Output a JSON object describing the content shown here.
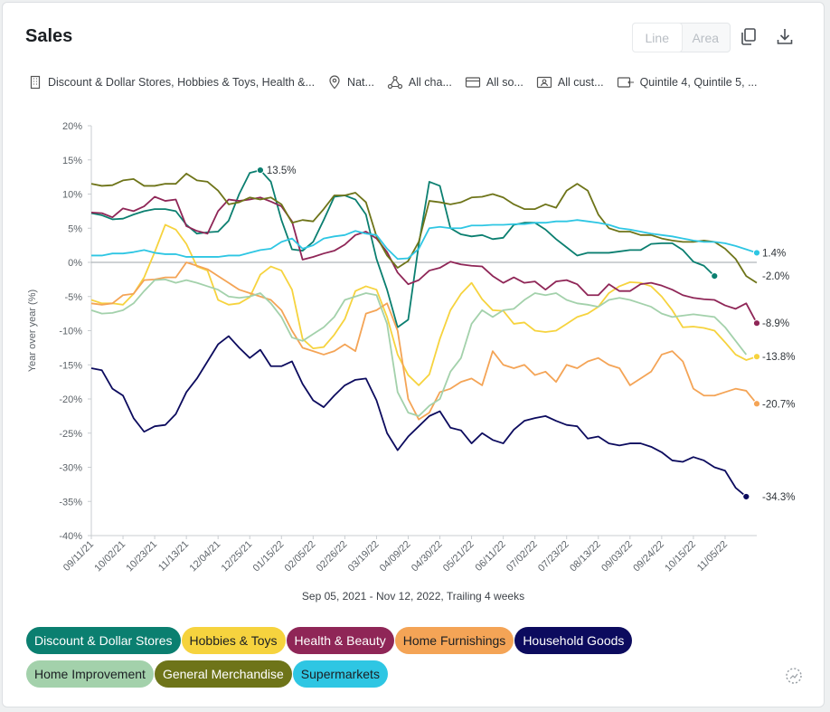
{
  "header": {
    "title": "Sales",
    "toggle": {
      "line_label": "Line",
      "area_label": "Area",
      "selected": "Line"
    },
    "icons": [
      "copy-icon",
      "download-icon"
    ]
  },
  "filters": [
    {
      "icon": "building-icon",
      "label": "Discount & Dollar Stores, Hobbies & Toys, Health &..."
    },
    {
      "icon": "map-pin-icon",
      "label": "Nat..."
    },
    {
      "icon": "channels-icon",
      "label": "All cha..."
    },
    {
      "icon": "card-icon",
      "label": "All so..."
    },
    {
      "icon": "id-card-icon",
      "label": "All cust..."
    },
    {
      "icon": "wallet-icon",
      "label": "Quintile 4, Quintile 5, ..."
    }
  ],
  "chart_data": {
    "type": "line",
    "subtitle": "Sep 05, 2021 - Nov 12, 2022, Trailing 4 weeks",
    "ylabel": "Year over year (%)",
    "ylim": [
      -40,
      20
    ],
    "yticks": [
      20,
      15,
      10,
      5,
      0,
      -5,
      -10,
      -15,
      -20,
      -25,
      -30,
      -35,
      -40
    ],
    "ytick_labels": [
      "20%",
      "15%",
      "10%",
      "5%",
      "0%",
      "-5%",
      "-10%",
      "-15%",
      "-20%",
      "-25%",
      "-30%",
      "-35%",
      "-40%"
    ],
    "x_start": "2021-09-11",
    "xticks": [
      "09/11/21",
      "10/02/21",
      "10/23/21",
      "11/13/21",
      "12/04/21",
      "12/25/21",
      "01/15/22",
      "02/05/22",
      "02/26/22",
      "03/19/22",
      "04/09/22",
      "04/30/22",
      "05/21/22",
      "06/11/22",
      "07/02/22",
      "07/23/22",
      "08/13/22",
      "09/03/22",
      "09/24/22",
      "10/15/22",
      "11/05/22"
    ],
    "grid": false,
    "zero_line": true,
    "legend_position": "bottom",
    "series": [
      {
        "name": "Discount & Dollar Stores",
        "color": "#0b7f70",
        "values": [
          7.2,
          6.9,
          6.3,
          6.4,
          7.0,
          7.5,
          7.8,
          7.8,
          7.5,
          5.5,
          4.2,
          4.4,
          4.5,
          6.1,
          10.0,
          13.1,
          13.5,
          11.8,
          6.2,
          1.9,
          1.7,
          3.0,
          6.2,
          9.6,
          9.8,
          9.2,
          7.0,
          0.5,
          -4.0,
          -9.5,
          -8.4,
          2.6,
          11.8,
          11.2,
          5.0,
          4.1,
          3.8,
          4.0,
          3.4,
          3.6,
          5.5,
          5.8,
          5.8,
          4.8,
          3.4,
          2.2,
          1.0,
          1.4,
          1.4,
          1.4,
          1.6,
          1.8,
          1.8,
          2.7,
          2.8,
          2.8,
          1.8,
          0.1,
          -0.5,
          -2.0
        ],
        "end_label": "-2.0%"
      },
      {
        "name": "Hobbies & Toys",
        "color": "#f6d33e",
        "values": [
          -5.5,
          -6.0,
          -6.0,
          -6.2,
          -4.6,
          -2.2,
          1.5,
          5.5,
          4.8,
          2.7,
          -0.6,
          -1.2,
          -5.5,
          -6.2,
          -6.0,
          -5.1,
          -1.8,
          -0.6,
          -1.2,
          -4.0,
          -11.2,
          -12.6,
          -12.4,
          -10.6,
          -8.3,
          -4.2,
          -3.5,
          -4.0,
          -8.0,
          -13.5,
          -16.5,
          -18.0,
          -16.4,
          -11.2,
          -7.0,
          -4.6,
          -3.0,
          -5.4,
          -7.0,
          -7.1,
          -9.0,
          -8.8,
          -10.0,
          -10.2,
          -10.0,
          -9.0,
          -8.0,
          -7.5,
          -6.5,
          -4.5,
          -3.5,
          -2.9,
          -3.0,
          -3.5,
          -5.0,
          -7.0,
          -9.5,
          -9.4,
          -9.6,
          -10.0,
          -11.7,
          -13.5,
          -14.3,
          -13.8
        ],
        "end_label": "-13.8%"
      },
      {
        "name": "Health & Beauty",
        "color": "#8f2657",
        "values": [
          7.3,
          7.2,
          6.6,
          7.9,
          7.5,
          8.2,
          9.6,
          9.0,
          9.2,
          5.3,
          4.6,
          4.2,
          7.5,
          9.2,
          9.0,
          9.2,
          9.5,
          8.9,
          8.2,
          6.0,
          0.4,
          0.8,
          1.3,
          1.7,
          2.6,
          4.0,
          4.5,
          3.5,
          1.5,
          -1.5,
          -3.2,
          -2.6,
          -1.2,
          -0.8,
          0.1,
          -0.3,
          -0.5,
          -0.6,
          -2.0,
          -3.0,
          -2.2,
          -3.0,
          -2.8,
          -4.0,
          -2.8,
          -2.6,
          -3.2,
          -4.8,
          -4.8,
          -3.2,
          -4.2,
          -4.2,
          -3.2,
          -3.0,
          -3.4,
          -4.0,
          -4.8,
          -5.2,
          -5.4,
          -5.5,
          -6.3,
          -6.8,
          -6.0,
          -8.9
        ],
        "end_label": "-8.9%"
      },
      {
        "name": "Home Furnishings",
        "color": "#f4a456",
        "values": [
          -6.0,
          -6.2,
          -6.0,
          -4.8,
          -4.6,
          -2.6,
          -2.5,
          -2.2,
          -2.2,
          0.0,
          -0.5,
          -1.0,
          -2.0,
          -3.0,
          -4.0,
          -4.5,
          -5.0,
          -5.5,
          -7.0,
          -10.0,
          -12.5,
          -13.0,
          -13.5,
          -13.0,
          -12.0,
          -13.0,
          -7.5,
          -7.0,
          -6.0,
          -10.0,
          -20.0,
          -23.0,
          -22.0,
          -19.0,
          -18.5,
          -17.5,
          -17.0,
          -18.0,
          -13.0,
          -15.0,
          -15.5,
          -15.0,
          -16.5,
          -16.0,
          -17.5,
          -15.0,
          -15.5,
          -14.5,
          -14.0,
          -15.0,
          -15.5,
          -18.0,
          -17.0,
          -16.0,
          -13.5,
          -13.0,
          -14.5,
          -18.5,
          -19.5,
          -19.5,
          -19.0,
          -18.5,
          -18.8,
          -20.7
        ],
        "end_label": "-20.7%"
      },
      {
        "name": "Household Goods",
        "color": "#0c0b5e",
        "values": [
          -15.5,
          -15.8,
          -18.5,
          -19.5,
          -22.8,
          -24.8,
          -24.0,
          -23.8,
          -22.2,
          -19.0,
          -17.0,
          -14.5,
          -12.0,
          -10.8,
          -12.5,
          -14.0,
          -12.8,
          -15.2,
          -15.2,
          -14.5,
          -17.8,
          -20.2,
          -21.2,
          -19.5,
          -18.0,
          -17.2,
          -17.0,
          -20.2,
          -25.0,
          -27.5,
          -25.5,
          -24.0,
          -22.5,
          -21.8,
          -24.2,
          -24.6,
          -26.5,
          -25.0,
          -26.0,
          -26.5,
          -24.5,
          -23.2,
          -22.8,
          -22.5,
          -23.2,
          -23.8,
          -24.0,
          -25.8,
          -25.5,
          -26.5,
          -26.8,
          -26.5,
          -26.5,
          -27.0,
          -27.8,
          -29.0,
          -29.2,
          -28.5,
          -29.0,
          -30.0,
          -30.5,
          -33.0,
          -34.3
        ],
        "end_label": "-34.3%"
      },
      {
        "name": "Home Improvement",
        "color": "#a3d1ab",
        "values": [
          -7.0,
          -7.5,
          -7.4,
          -7.0,
          -6.0,
          -4.2,
          -2.6,
          -2.5,
          -3.0,
          -2.6,
          -3.0,
          -3.5,
          -4.0,
          -5.0,
          -5.2,
          -5.0,
          -4.5,
          -6.0,
          -8.0,
          -11.0,
          -11.5,
          -10.5,
          -9.5,
          -8.0,
          -5.5,
          -5.0,
          -4.5,
          -4.8,
          -9.0,
          -19.0,
          -22.0,
          -22.5,
          -21.0,
          -20.0,
          -16.0,
          -14.0,
          -9.0,
          -7.0,
          -8.0,
          -7.0,
          -6.8,
          -5.5,
          -4.5,
          -4.8,
          -4.5,
          -5.5,
          -6.0,
          -6.2,
          -6.5,
          -5.5,
          -5.2,
          -5.5,
          -6.0,
          -6.5,
          -7.5,
          -8.0,
          -7.8,
          -7.6,
          -7.8,
          -8.0,
          -9.5,
          -11.5,
          -13.5
        ],
        "end_label": ""
      },
      {
        "name": "General Merchandise",
        "color": "#6e7419",
        "values": [
          11.5,
          11.2,
          11.3,
          12.0,
          12.2,
          11.2,
          11.2,
          11.5,
          11.5,
          13.0,
          12.0,
          11.8,
          10.5,
          8.5,
          8.8,
          9.5,
          9.2,
          9.5,
          8.5,
          5.8,
          6.2,
          6.0,
          7.8,
          9.8,
          9.8,
          10.2,
          8.8,
          3.8,
          1.0,
          -0.8,
          0.2,
          3.0,
          9.0,
          8.8,
          8.5,
          8.8,
          9.5,
          9.6,
          10.0,
          9.5,
          8.5,
          7.8,
          7.8,
          8.5,
          8.0,
          10.5,
          11.5,
          10.5,
          7.0,
          5.0,
          4.5,
          4.5,
          4.0,
          4.0,
          3.5,
          3.2,
          3.0,
          3.0,
          3.2,
          3.0,
          2.0,
          0.5,
          -2.0,
          -3.0
        ],
        "end_label": ""
      },
      {
        "name": "Supermarkets",
        "color": "#2ec6e3",
        "values": [
          1.0,
          1.0,
          1.3,
          1.3,
          1.5,
          1.8,
          1.4,
          1.2,
          1.2,
          0.8,
          0.8,
          0.8,
          0.8,
          1.0,
          1.0,
          1.4,
          1.8,
          2.0,
          3.0,
          3.5,
          2.0,
          2.5,
          3.5,
          3.8,
          4.0,
          4.6,
          4.2,
          4.0,
          2.0,
          0.5,
          0.6,
          2.0,
          5.0,
          5.2,
          5.0,
          5.0,
          5.4,
          5.4,
          5.5,
          5.5,
          5.6,
          5.6,
          5.8,
          5.8,
          6.0,
          6.0,
          6.2,
          6.0,
          5.8,
          5.5,
          5.0,
          4.8,
          4.5,
          4.2,
          4.0,
          3.8,
          3.5,
          3.2,
          3.0,
          3.0,
          2.8,
          2.4,
          1.9,
          1.4
        ],
        "end_label": "1.4%"
      }
    ],
    "annotation": {
      "series": "Discount & Dollar Stores",
      "index": 16,
      "label": "13.5%"
    }
  }
}
